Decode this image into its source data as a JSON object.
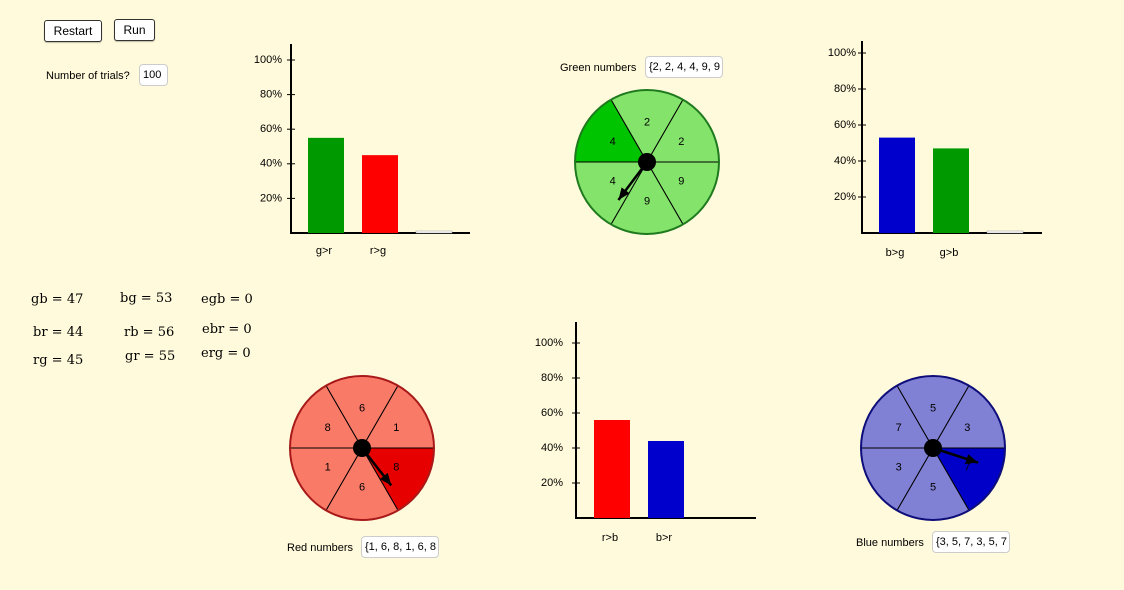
{
  "controls": {
    "restart_label": "Restart",
    "run_label": "Run",
    "trials_label": "Number of trials?",
    "trials_value": "100"
  },
  "stats": [
    {
      "name": "gb",
      "value": "47"
    },
    {
      "name": "bg",
      "value": "53"
    },
    {
      "name": "egb",
      "value": "0"
    },
    {
      "name": "br",
      "value": "44"
    },
    {
      "name": "rb",
      "value": "56"
    },
    {
      "name": "ebr",
      "value": "0"
    },
    {
      "name": "rg",
      "value": "45"
    },
    {
      "name": "gr",
      "value": "55"
    },
    {
      "name": "erg",
      "value": "0"
    }
  ],
  "spinners": {
    "green": {
      "label": "Green numbers",
      "value": "{2, 2, 4, 4, 9, 9",
      "color": "#1b9e1b",
      "sector_fill": "#83e36a",
      "highlight_fill": "#00c400",
      "stroke": "#1f7a1f",
      "numbers": [
        "2",
        "2",
        "9",
        "9",
        "4",
        "4"
      ],
      "highlight_sector": 5,
      "pointer_angle_deg": 217
    },
    "red": {
      "label": "Red numbers",
      "value": "{1, 6, 8, 1, 6, 8",
      "color": "#e8160e",
      "sector_fill": "#fa7a68",
      "highlight_fill": "#e70000",
      "stroke": "#a81a1a",
      "numbers": [
        "6",
        "1",
        "8",
        "6",
        "1",
        "8"
      ],
      "highlight_sector": 2,
      "pointer_angle_deg": 142
    },
    "blue": {
      "label": "Blue numbers",
      "value": "{3, 5, 7, 3, 5, 7",
      "color": "#0b0ba8",
      "sector_fill": "#8080d4",
      "highlight_fill": "#0000c8",
      "stroke": "#0e0e7a",
      "numbers": [
        "5",
        "3",
        "7",
        "5",
        "3",
        "7"
      ],
      "highlight_sector": 2,
      "pointer_angle_deg": 108
    }
  },
  "chart_data": [
    {
      "type": "bar",
      "categories": [
        "g>r",
        "r>g",
        ""
      ],
      "values": [
        55,
        45,
        0
      ],
      "colors": [
        "#009900",
        "#ff0000",
        "#ffffff"
      ],
      "yticks": [
        "20%",
        "40%",
        "60%",
        "80%",
        "100%"
      ],
      "ylim": [
        0,
        110
      ]
    },
    {
      "type": "bar",
      "categories": [
        "b>g",
        "g>b",
        ""
      ],
      "values": [
        53,
        47,
        0
      ],
      "colors": [
        "#0000cc",
        "#009900",
        "#ffffff"
      ],
      "yticks": [
        "20%",
        "40%",
        "60%",
        "80%",
        "100%"
      ],
      "ylim": [
        0,
        110
      ]
    },
    {
      "type": "bar",
      "categories": [
        "r>b",
        "b>r"
      ],
      "values": [
        56,
        44
      ],
      "colors": [
        "#ff0000",
        "#0000cc"
      ],
      "yticks": [
        "20%",
        "40%",
        "60%",
        "80%",
        "100%"
      ],
      "ylim": [
        0,
        110
      ]
    }
  ]
}
